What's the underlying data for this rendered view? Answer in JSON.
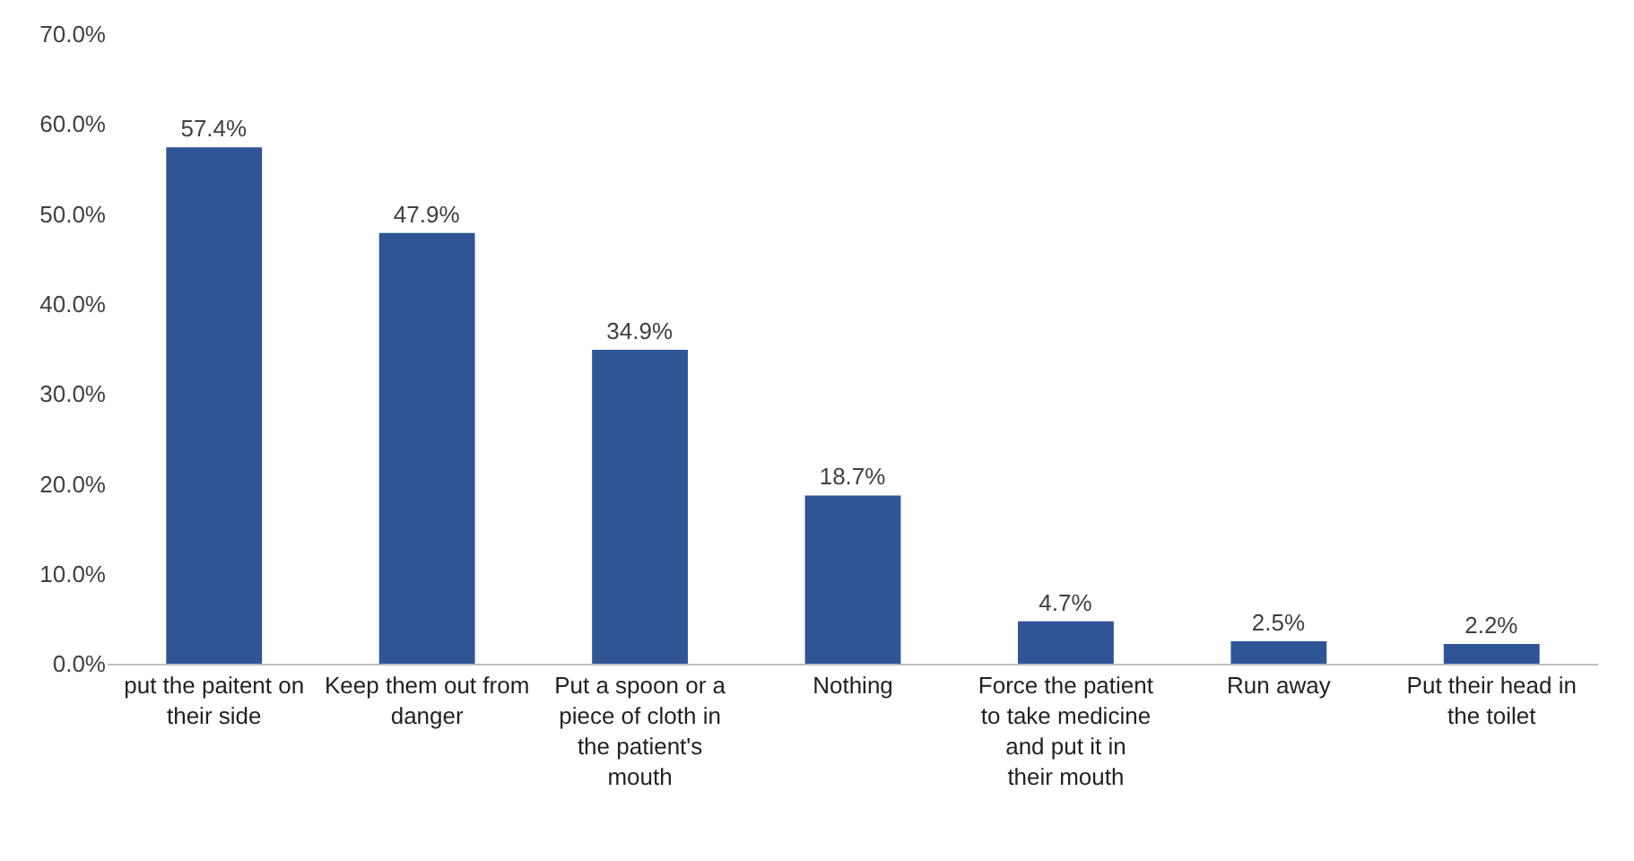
{
  "chart_data": {
    "type": "bar",
    "categories": [
      "put the paitent on their side",
      "Keep them out from danger",
      "Put a spoon or a piece of cloth in the patient's mouth",
      "Nothing",
      "Force the patient to take medicine and put it in their mouth",
      "Run away",
      "Put their head in the toilet"
    ],
    "values": [
      57.4,
      47.9,
      34.9,
      18.7,
      4.7,
      2.5,
      2.2
    ],
    "value_labels": [
      "57.4%",
      "47.9%",
      "34.9%",
      "18.7%",
      "4.7%",
      "2.5%",
      "2.2%"
    ],
    "color": "#2f5597",
    "ylim": [
      0,
      70
    ],
    "yticks": [
      {
        "value": 0,
        "label": "0.0%"
      },
      {
        "value": 10,
        "label": "10.0%"
      },
      {
        "value": 20,
        "label": "20.0%"
      },
      {
        "value": 30,
        "label": "30.0%"
      },
      {
        "value": 40,
        "label": "40.0%"
      },
      {
        "value": 50,
        "label": "50.0%"
      },
      {
        "value": 60,
        "label": "60.0%"
      },
      {
        "value": 70,
        "label": "70.0%"
      }
    ],
    "grid": false
  }
}
